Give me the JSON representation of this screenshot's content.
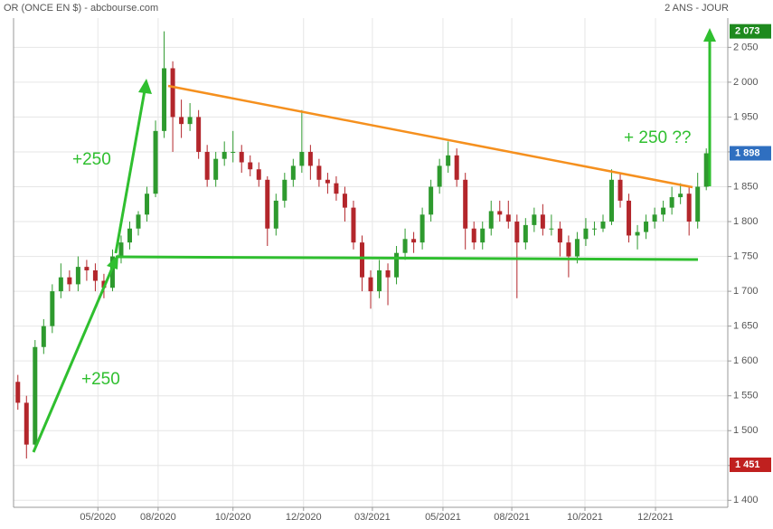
{
  "chart_data": {
    "type": "candlestick",
    "title": "OR (ONCE EN $) - abcbourse.com",
    "subtitle": "2 ANS - JOUR",
    "xlim": [
      0,
      83
    ],
    "xticks": [
      {
        "value": 9.8,
        "label": "05/2020"
      },
      {
        "value": 16.8,
        "label": "08/2020"
      },
      {
        "value": 25.5,
        "label": "10/2020"
      },
      {
        "value": 33.7,
        "label": "12/2020"
      },
      {
        "value": 41.7,
        "label": "03/2021"
      },
      {
        "value": 49.9,
        "label": "05/2021"
      },
      {
        "value": 57.9,
        "label": "08/2021"
      },
      {
        "value": 66.4,
        "label": "10/2021"
      },
      {
        "value": 74.6,
        "label": "12/2021"
      }
    ],
    "ylim": [
      1390,
      2092
    ],
    "yticks": [
      {
        "value": 1400,
        "label": "1 400"
      },
      {
        "value": 1450,
        "label": "1 450"
      },
      {
        "value": 1500,
        "label": "1 500"
      },
      {
        "value": 1550,
        "label": "1 550"
      },
      {
        "value": 1600,
        "label": "1 600"
      },
      {
        "value": 1650,
        "label": "1 650"
      },
      {
        "value": 1700,
        "label": "1 700"
      },
      {
        "value": 1750,
        "label": "1 750"
      },
      {
        "value": 1800,
        "label": "1 800"
      },
      {
        "value": 1850,
        "label": "1 850"
      },
      {
        "value": 1900,
        "label": "1 900"
      },
      {
        "value": 1950,
        "label": "1 950"
      },
      {
        "value": 2000,
        "label": "2 000"
      },
      {
        "value": 2050,
        "label": "2 050"
      }
    ],
    "grid": true,
    "up_color": "#2e9a2e",
    "down_color": "#b3262b",
    "open": [
      1570,
      1540,
      1480,
      1620,
      1650,
      1700,
      1720,
      1710,
      1735,
      1730,
      1715,
      1705,
      1750,
      1770,
      1790,
      1810,
      1840,
      1930,
      2020,
      1950,
      1940,
      1950,
      1900,
      1860,
      1890,
      1900,
      1900,
      1885,
      1875,
      1860,
      1790,
      1830,
      1860,
      1880,
      1900,
      1880,
      1860,
      1855,
      1840,
      1820,
      1770,
      1720,
      1700,
      1730,
      1720,
      1755,
      1775,
      1770,
      1810,
      1850,
      1880,
      1895,
      1860,
      1790,
      1770,
      1790,
      1815,
      1810,
      1800,
      1770,
      1795,
      1810,
      1790,
      1790,
      1770,
      1750,
      1775,
      1790,
      1790,
      1800,
      1860,
      1830,
      1780,
      1785,
      1800,
      1810,
      1820,
      1835,
      1840,
      1800,
      1850
    ],
    "high": [
      1580,
      1550,
      1630,
      1660,
      1710,
      1740,
      1730,
      1750,
      1745,
      1740,
      1725,
      1760,
      1780,
      1800,
      1815,
      1850,
      1945,
      2073,
      2030,
      1975,
      1970,
      1960,
      1910,
      1900,
      1915,
      1930,
      1910,
      1895,
      1885,
      1865,
      1840,
      1870,
      1890,
      1960,
      1910,
      1890,
      1870,
      1865,
      1850,
      1830,
      1780,
      1730,
      1745,
      1740,
      1765,
      1790,
      1785,
      1820,
      1860,
      1890,
      1915,
      1905,
      1870,
      1800,
      1800,
      1830,
      1830,
      1830,
      1810,
      1805,
      1820,
      1825,
      1810,
      1800,
      1780,
      1785,
      1805,
      1800,
      1810,
      1875,
      1870,
      1840,
      1795,
      1810,
      1820,
      1830,
      1850,
      1855,
      1850,
      1870,
      1905
    ],
    "low": [
      1530,
      1460,
      1475,
      1610,
      1640,
      1690,
      1700,
      1700,
      1715,
      1700,
      1690,
      1700,
      1740,
      1760,
      1780,
      1800,
      1835,
      1920,
      1900,
      1920,
      1930,
      1890,
      1850,
      1850,
      1880,
      1885,
      1870,
      1865,
      1850,
      1765,
      1780,
      1820,
      1850,
      1870,
      1860,
      1850,
      1840,
      1830,
      1800,
      1760,
      1700,
      1675,
      1690,
      1680,
      1710,
      1745,
      1755,
      1760,
      1800,
      1840,
      1870,
      1850,
      1760,
      1760,
      1760,
      1780,
      1800,
      1790,
      1690,
      1760,
      1785,
      1780,
      1780,
      1750,
      1720,
      1740,
      1765,
      1780,
      1785,
      1795,
      1820,
      1770,
      1760,
      1775,
      1790,
      1800,
      1810,
      1825,
      1780,
      1790,
      1845
    ],
    "close": [
      1540,
      1480,
      1620,
      1650,
      1700,
      1720,
      1710,
      1735,
      1730,
      1715,
      1705,
      1750,
      1770,
      1790,
      1810,
      1840,
      1930,
      2020,
      1950,
      1940,
      1950,
      1900,
      1860,
      1890,
      1900,
      1900,
      1885,
      1875,
      1860,
      1790,
      1830,
      1860,
      1880,
      1900,
      1880,
      1860,
      1855,
      1840,
      1820,
      1770,
      1720,
      1700,
      1730,
      1720,
      1755,
      1775,
      1770,
      1810,
      1850,
      1880,
      1895,
      1860,
      1790,
      1770,
      1790,
      1815,
      1810,
      1800,
      1770,
      1795,
      1810,
      1790,
      1790,
      1770,
      1750,
      1775,
      1790,
      1790,
      1800,
      1860,
      1830,
      1780,
      1785,
      1800,
      1810,
      1820,
      1835,
      1840,
      1800,
      1850,
      1898
    ],
    "price_labels": [
      {
        "value": 2073,
        "label": "2 073",
        "color": "#1e8a1e"
      },
      {
        "value": 1898,
        "label": "1 898",
        "color": "#2f6fc0"
      },
      {
        "value": 1451,
        "label": "1 451",
        "color": "#c0201f"
      }
    ],
    "annotations": [
      "+250",
      "+250",
      "+ 250 ??"
    ]
  }
}
